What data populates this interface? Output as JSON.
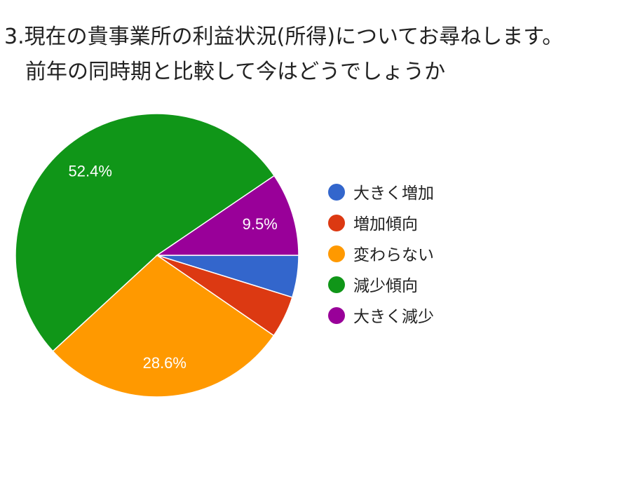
{
  "chart_data": {
    "type": "pie",
    "title": "3.現在の貴事業所の利益状況(所得)についてお尋ねします。\n　前年の同時期と比較して今はどうでしょうか",
    "slices": [
      {
        "name": "大きく増加",
        "value": 4.8,
        "color": "#3366cc",
        "label": ""
      },
      {
        "name": "増加傾向",
        "value": 4.8,
        "color": "#dc3912",
        "label": ""
      },
      {
        "name": "変わらない",
        "value": 28.6,
        "color": "#ff9900",
        "label": "28.6%"
      },
      {
        "name": "減少傾向",
        "value": 52.4,
        "color": "#109618",
        "label": "52.4%"
      },
      {
        "name": "大きく減少",
        "value": 9.5,
        "color": "#990099",
        "label": "9.5%"
      }
    ],
    "legend_position": "right"
  }
}
